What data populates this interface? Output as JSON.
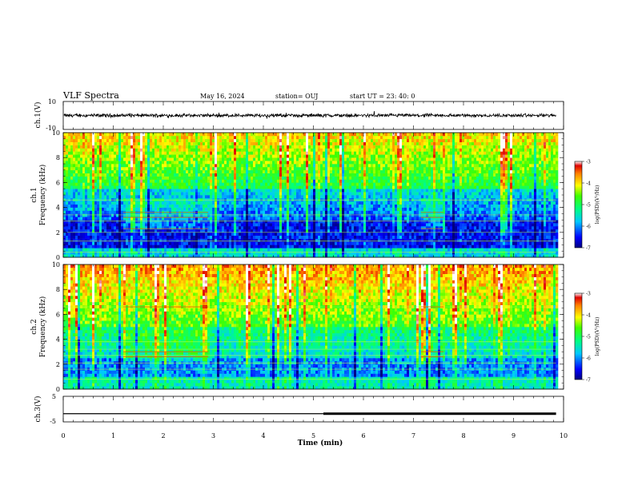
{
  "header": {
    "title": "VLF Spectra",
    "date": "May 16, 2024",
    "station": "station= OUJ",
    "start": "start  UT =   23: 40: 0"
  },
  "chart_data": [
    {
      "type": "line",
      "panel": "ch1-waveform",
      "ylabel": "ch.1(V)",
      "ylim": [
        -10,
        10
      ],
      "yticks": [
        "10",
        "-10"
      ],
      "xlim": [
        0,
        10
      ],
      "signal_amplitude_v": 1.5
    },
    {
      "type": "heatmap",
      "panel": "ch1-spectrogram",
      "ylabel": "ch.1\nFrequency (kHz)",
      "ylabel_lines": [
        "ch.1",
        "Frequency (kHz)"
      ],
      "ylim": [
        0,
        10
      ],
      "yticks": [
        "0",
        "2",
        "4",
        "6",
        "8",
        "10"
      ],
      "xlim": [
        0,
        9.85
      ],
      "colorbar": {
        "label": "log(PSD)(V²/Hz)",
        "range": [
          -7,
          -3
        ],
        "ticks": [
          "-3",
          "-4",
          "-5",
          "-6",
          "-7"
        ]
      },
      "strong_intervals_min": [
        [
          1.2,
          2.9
        ],
        [
          7.15,
          7.6
        ]
      ]
    },
    {
      "type": "heatmap",
      "panel": "ch2-spectrogram",
      "ylabel": "ch.2\nFrequency (kHz)",
      "ylabel_lines": [
        "ch.2",
        "Frequency (kHz)"
      ],
      "ylim": [
        0,
        10
      ],
      "yticks": [
        "0",
        "2",
        "4",
        "6",
        "8",
        "10"
      ],
      "xlim": [
        0,
        9.85
      ],
      "colorbar": {
        "label": "log(PSD)(V²/Hz)",
        "range": [
          -7,
          -3
        ],
        "ticks": [
          "-3",
          "-4",
          "-5",
          "-6",
          "-7"
        ]
      },
      "strong_intervals_min": [
        [
          1.2,
          2.9
        ],
        [
          7.15,
          7.6
        ]
      ]
    },
    {
      "type": "line",
      "panel": "ch3-trace",
      "ylabel": "ch.3(V)",
      "ylim": [
        -5,
        5
      ],
      "yticks": [
        "5",
        "0",
        "-5"
      ],
      "xlim": [
        0,
        10
      ],
      "segments": [
        {
          "x": [
            0,
            5.2
          ],
          "y": -1.8,
          "thickness": "thin"
        },
        {
          "x": [
            5.2,
            9.85
          ],
          "y": -1.8,
          "thickness": "thick"
        }
      ],
      "xlabel": "Time  (min)",
      "xticks": [
        "0",
        "1",
        "2",
        "3",
        "4",
        "5",
        "6",
        "7",
        "8",
        "9",
        "10"
      ]
    }
  ]
}
